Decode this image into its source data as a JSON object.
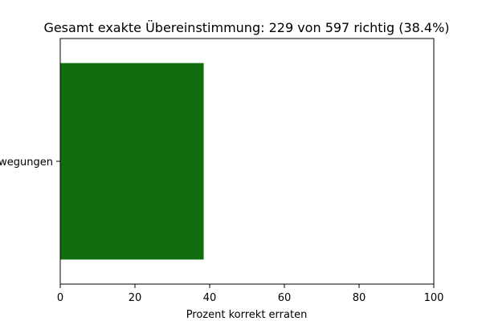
{
  "chart_data": {
    "type": "bar",
    "orientation": "horizontal",
    "title": "Gesamt exakte Übereinstimmung: 229 von 597 richtig (38.4%)",
    "xlabel": "Prozent korrekt erraten",
    "ylabel": "",
    "categories": [
      "wegungen"
    ],
    "values": [
      38.4
    ],
    "xlim": [
      0,
      100
    ],
    "xticks": [
      0,
      20,
      40,
      60,
      80,
      100
    ],
    "grid": false,
    "legend": "none",
    "colors": {
      "bar": "#116e0f",
      "axis": "#000000",
      "background": "#ffffff"
    }
  }
}
